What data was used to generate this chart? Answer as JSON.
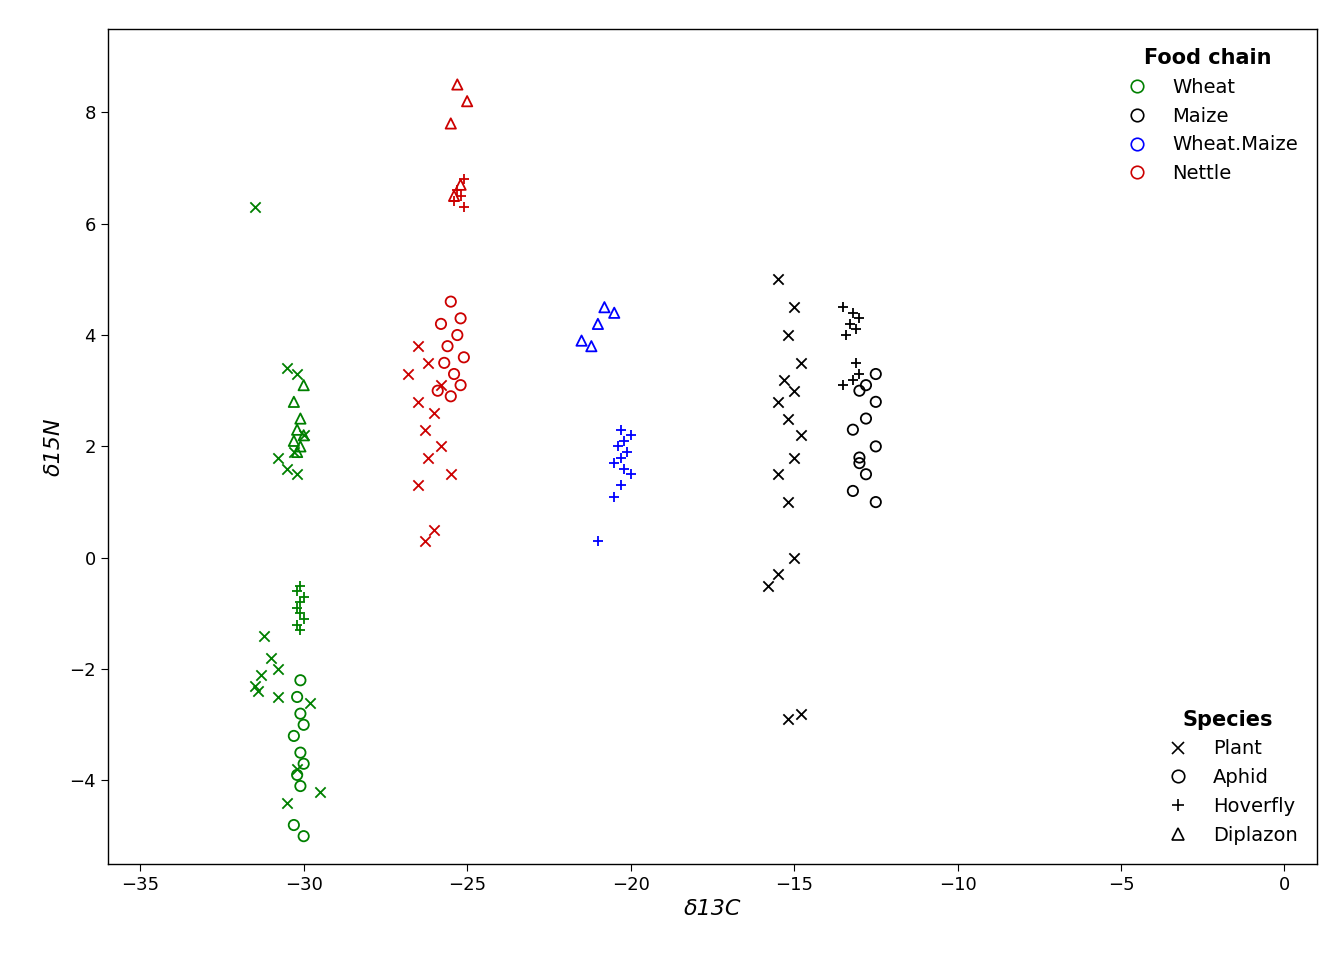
{
  "xlabel": "δ13C",
  "ylabel": "δ15N",
  "xlim": [
    -36,
    1
  ],
  "ylim": [
    -5.5,
    9.5
  ],
  "xticks": [
    -35,
    -30,
    -25,
    -20,
    -15,
    -10,
    -5,
    0
  ],
  "yticks": [
    -4,
    -2,
    0,
    2,
    4,
    6,
    8
  ],
  "food_chain_colors": {
    "Wheat": "#008000",
    "Maize": "#000000",
    "Wheat.Maize": "#0000FF",
    "Nettle": "#CC0000"
  },
  "data": {
    "Wheat": {
      "Plant": [
        [
          -31.5,
          6.3
        ],
        [
          -30.5,
          3.4
        ],
        [
          -30.2,
          3.3
        ],
        [
          -30.0,
          2.2
        ],
        [
          -30.3,
          1.9
        ],
        [
          -30.8,
          1.8
        ],
        [
          -30.5,
          1.6
        ],
        [
          -30.2,
          1.5
        ],
        [
          -31.2,
          -1.4
        ],
        [
          -31.0,
          -1.8
        ],
        [
          -30.8,
          -2.0
        ],
        [
          -31.3,
          -2.1
        ],
        [
          -31.5,
          -2.3
        ],
        [
          -31.4,
          -2.4
        ],
        [
          -30.8,
          -2.5
        ],
        [
          -29.8,
          -2.6
        ],
        [
          -30.2,
          -3.8
        ],
        [
          -29.5,
          -4.2
        ],
        [
          -30.5,
          -4.4
        ]
      ],
      "Aphid": [
        [
          -30.1,
          -2.2
        ],
        [
          -30.2,
          -2.5
        ],
        [
          -30.1,
          -2.8
        ],
        [
          -30.0,
          -3.0
        ],
        [
          -30.3,
          -3.2
        ],
        [
          -30.1,
          -3.5
        ],
        [
          -30.0,
          -3.7
        ],
        [
          -30.2,
          -3.9
        ],
        [
          -30.1,
          -4.1
        ],
        [
          -30.3,
          -4.8
        ],
        [
          -30.0,
          -5.0
        ]
      ],
      "Hoverfly": [
        [
          -30.1,
          -0.5
        ],
        [
          -30.2,
          -0.6
        ],
        [
          -30.0,
          -0.7
        ],
        [
          -30.1,
          -0.8
        ],
        [
          -30.2,
          -0.9
        ],
        [
          -30.1,
          -1.0
        ],
        [
          -30.0,
          -1.1
        ],
        [
          -30.2,
          -1.2
        ],
        [
          -30.1,
          -1.3
        ]
      ],
      "Diplazon": [
        [
          -30.2,
          1.9
        ],
        [
          -30.1,
          2.0
        ],
        [
          -30.3,
          2.1
        ],
        [
          -30.0,
          2.2
        ],
        [
          -30.2,
          2.3
        ],
        [
          -30.1,
          2.5
        ],
        [
          -30.3,
          2.8
        ],
        [
          -30.0,
          3.1
        ]
      ]
    },
    "Nettle": {
      "Plant": [
        [
          -26.5,
          3.8
        ],
        [
          -26.2,
          3.5
        ],
        [
          -26.8,
          3.3
        ],
        [
          -25.8,
          3.1
        ],
        [
          -26.5,
          2.8
        ],
        [
          -26.0,
          2.6
        ],
        [
          -26.3,
          2.3
        ],
        [
          -25.8,
          2.0
        ],
        [
          -26.2,
          1.8
        ],
        [
          -25.5,
          1.5
        ],
        [
          -26.5,
          1.3
        ],
        [
          -26.0,
          0.5
        ],
        [
          -26.3,
          0.3
        ]
      ],
      "Aphid": [
        [
          -25.5,
          4.6
        ],
        [
          -25.2,
          4.3
        ],
        [
          -25.8,
          4.2
        ],
        [
          -25.3,
          4.0
        ],
        [
          -25.6,
          3.8
        ],
        [
          -25.1,
          3.6
        ],
        [
          -25.7,
          3.5
        ],
        [
          -25.4,
          3.3
        ],
        [
          -25.2,
          3.1
        ],
        [
          -25.9,
          3.0
        ],
        [
          -25.5,
          2.9
        ]
      ],
      "Hoverfly": [
        [
          -25.1,
          6.8
        ],
        [
          -25.3,
          6.6
        ],
        [
          -25.2,
          6.5
        ],
        [
          -25.4,
          6.4
        ],
        [
          -25.1,
          6.3
        ]
      ],
      "Diplazon": [
        [
          -25.3,
          8.5
        ],
        [
          -25.0,
          8.2
        ],
        [
          -25.5,
          7.8
        ],
        [
          -25.2,
          6.7
        ],
        [
          -25.4,
          6.5
        ]
      ]
    },
    "Wheat.Maize": {
      "Plant": [],
      "Aphid": [],
      "Hoverfly": [
        [
          -21.0,
          0.3
        ],
        [
          -20.5,
          1.1
        ],
        [
          -20.3,
          1.3
        ],
        [
          -20.0,
          1.5
        ],
        [
          -20.2,
          1.6
        ],
        [
          -20.5,
          1.7
        ],
        [
          -20.3,
          1.8
        ],
        [
          -20.1,
          1.9
        ],
        [
          -20.4,
          2.0
        ],
        [
          -20.2,
          2.1
        ],
        [
          -20.0,
          2.2
        ],
        [
          -20.3,
          2.3
        ]
      ],
      "Diplazon": [
        [
          -21.5,
          3.9
        ],
        [
          -21.0,
          4.2
        ],
        [
          -20.5,
          4.4
        ],
        [
          -20.8,
          4.5
        ],
        [
          -21.2,
          3.8
        ]
      ]
    },
    "Maize": {
      "Plant": [
        [
          -15.5,
          5.0
        ],
        [
          -15.0,
          4.5
        ],
        [
          -15.2,
          4.0
        ],
        [
          -14.8,
          3.5
        ],
        [
          -15.3,
          3.2
        ],
        [
          -15.0,
          3.0
        ],
        [
          -15.5,
          2.8
        ],
        [
          -15.2,
          2.5
        ],
        [
          -14.8,
          2.2
        ],
        [
          -15.0,
          1.8
        ],
        [
          -15.5,
          1.5
        ],
        [
          -15.2,
          1.0
        ],
        [
          -15.0,
          0.0
        ],
        [
          -15.5,
          -0.3
        ],
        [
          -15.8,
          -0.5
        ],
        [
          -14.8,
          -2.8
        ],
        [
          -15.2,
          -2.9
        ]
      ],
      "Aphid": [
        [
          -12.5,
          3.3
        ],
        [
          -12.8,
          3.1
        ],
        [
          -13.0,
          3.0
        ],
        [
          -12.5,
          2.8
        ],
        [
          -12.8,
          2.5
        ],
        [
          -13.2,
          2.3
        ],
        [
          -12.5,
          2.0
        ],
        [
          -13.0,
          1.8
        ],
        [
          -12.8,
          1.5
        ],
        [
          -13.2,
          1.2
        ],
        [
          -12.5,
          1.0
        ],
        [
          -13.0,
          1.7
        ]
      ],
      "Hoverfly": [
        [
          -13.5,
          4.5
        ],
        [
          -13.2,
          4.4
        ],
        [
          -13.0,
          4.3
        ],
        [
          -13.3,
          4.2
        ],
        [
          -13.1,
          4.1
        ],
        [
          -13.4,
          4.0
        ],
        [
          -13.0,
          3.3
        ],
        [
          -13.2,
          3.2
        ],
        [
          -13.5,
          3.1
        ],
        [
          -13.1,
          3.5
        ]
      ],
      "Diplazon": []
    }
  }
}
